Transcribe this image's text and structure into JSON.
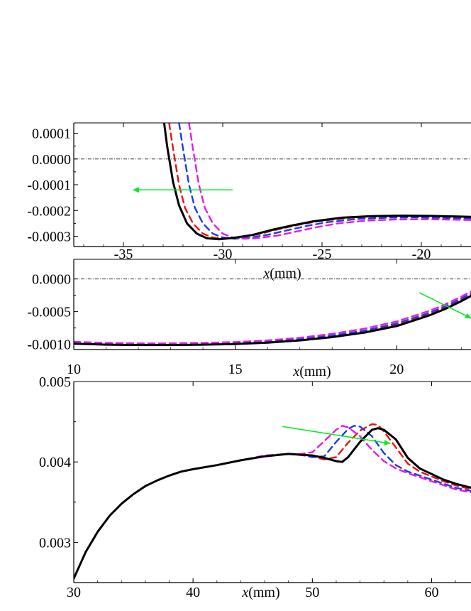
{
  "chart_data": [
    {
      "type": "line",
      "xlabel_var": "x",
      "xlabel_unit": "(mm)",
      "xlim": [
        -37.5,
        -17.5
      ],
      "ylim": [
        -0.00034,
        0.00014
      ],
      "xticks": [
        -35,
        -30,
        -25,
        -20
      ],
      "xtick_labels": [
        "-35",
        "-30",
        "-25",
        "-20"
      ],
      "yticks": [
        0.0001,
        0.0,
        -0.0001,
        -0.0002,
        -0.0003
      ],
      "ytick_labels": [
        "0.0001",
        "0.0000",
        "-0.0001",
        "-0.0002",
        "-0.0003"
      ],
      "zero_reference_line": true,
      "arrow": {
        "from": [
          -29.5,
          -0.00012
        ],
        "to": [
          -34.5,
          -0.00012
        ],
        "color": "#00ee22"
      },
      "series": [
        {
          "color": "#000000",
          "style": "solid",
          "x": [
            -32.95,
            -32.8,
            -32.5,
            -32.2,
            -31.8,
            -31.3,
            -30.8,
            -30.2,
            -29.5,
            -28.5,
            -27.5,
            -26.5,
            -25.5,
            -24,
            -22.5,
            -21,
            -19.5,
            -18,
            -17.5
          ],
          "y": [
            0.00014,
            5e-05,
            -9e-05,
            -0.00018,
            -0.00025,
            -0.00029,
            -0.000308,
            -0.000312,
            -0.000307,
            -0.000295,
            -0.000275,
            -0.000258,
            -0.000243,
            -0.000228,
            -0.000222,
            -0.00022,
            -0.000221,
            -0.000224,
            -0.000225
          ]
        },
        {
          "color": "#ee1111",
          "style": "dashed",
          "x": [
            -32.7,
            -32.5,
            -32.2,
            -31.9,
            -31.5,
            -31.0,
            -30.5,
            -29.9,
            -29.2,
            -28.2,
            -27.2,
            -26.2,
            -25.2,
            -23.7,
            -22.2,
            -20.7,
            -19.2,
            -17.5
          ],
          "y": [
            0.00014,
            4e-05,
            -0.0001,
            -0.00019,
            -0.00025,
            -0.00029,
            -0.000305,
            -0.00031,
            -0.000305,
            -0.000292,
            -0.000273,
            -0.000256,
            -0.000242,
            -0.000229,
            -0.000223,
            -0.000222,
            -0.000224,
            -0.000227
          ]
        },
        {
          "color": "#1a3de8",
          "style": "dashed",
          "x": [
            -32.2,
            -32.0,
            -31.7,
            -31.4,
            -31.0,
            -30.5,
            -30.0,
            -29.4,
            -28.7,
            -27.7,
            -26.7,
            -25.7,
            -24.7,
            -23.2,
            -21.7,
            -20.2,
            -18.7,
            -17.5
          ],
          "y": [
            0.00014,
            4e-05,
            -0.0001,
            -0.00019,
            -0.00025,
            -0.00029,
            -0.000305,
            -0.00031,
            -0.000306,
            -0.000294,
            -0.000276,
            -0.000259,
            -0.000245,
            -0.000233,
            -0.000228,
            -0.000227,
            -0.000229,
            -0.000231
          ]
        },
        {
          "color": "#e61ae6",
          "style": "dashed",
          "x": [
            -31.7,
            -31.5,
            -31.2,
            -30.9,
            -30.5,
            -30.0,
            -29.5,
            -28.9,
            -28.2,
            -27.2,
            -26.2,
            -25.2,
            -24.2,
            -22.7,
            -21.2,
            -19.7,
            -18.2,
            -17.5
          ],
          "y": [
            0.00014,
            4e-05,
            -0.0001,
            -0.00019,
            -0.00025,
            -0.00029,
            -0.000305,
            -0.00031,
            -0.000307,
            -0.000297,
            -0.00028,
            -0.000264,
            -0.00025,
            -0.000239,
            -0.000235,
            -0.000234,
            -0.000236,
            -0.000237
          ]
        }
      ]
    },
    {
      "type": "line",
      "xlabel_var": "x",
      "xlabel_unit": "(mm)",
      "xlim": [
        10,
        22.3
      ],
      "ylim": [
        -0.00108,
        0.0003
      ],
      "xticks": [
        10,
        15,
        20
      ],
      "xtick_labels": [
        "10",
        "15",
        "20"
      ],
      "yticks": [
        0.0,
        -0.0005,
        -0.001
      ],
      "ytick_labels": [
        "0.0000",
        "-0.0005",
        "-0.0010"
      ],
      "zero_reference_line": true,
      "arrow": {
        "from": [
          20.7,
          -0.00021
        ],
        "to": [
          22.3,
          -0.0006
        ],
        "color": "#00ee22"
      },
      "series": [
        {
          "color": "#000000",
          "style": "solid",
          "x": [
            10,
            11,
            12,
            13,
            14,
            15,
            16,
            17,
            18,
            19,
            20,
            21,
            21.5,
            22,
            22.3
          ],
          "y": [
            -0.00099,
            -0.001005,
            -0.00101,
            -0.00101,
            -0.001005,
            -0.000995,
            -0.000975,
            -0.00094,
            -0.00089,
            -0.00082,
            -0.00072,
            -0.00056,
            -0.00046,
            -0.00034,
            -0.00026
          ]
        },
        {
          "color": "#ee1111",
          "style": "dashed",
          "x": [
            10,
            11,
            12,
            13,
            14,
            15,
            16,
            17,
            18,
            19,
            20,
            21,
            21.5,
            22,
            22.3
          ],
          "y": [
            -0.00098,
            -0.000998,
            -0.001005,
            -0.001005,
            -0.001,
            -0.00099,
            -0.00097,
            -0.000932,
            -0.00088,
            -0.000805,
            -0.0007,
            -0.00054,
            -0.00044,
            -0.00032,
            -0.00024
          ]
        },
        {
          "color": "#1a3de8",
          "style": "dashed",
          "x": [
            10,
            11,
            12,
            13,
            14,
            15,
            16,
            17,
            18,
            19,
            20,
            21,
            21.5,
            22,
            22.3
          ],
          "y": [
            -0.000975,
            -0.00099,
            -0.000998,
            -0.000998,
            -0.000993,
            -0.00098,
            -0.000958,
            -0.00092,
            -0.000865,
            -0.00079,
            -0.00068,
            -0.00052,
            -0.00042,
            -0.0003,
            -0.00022
          ]
        },
        {
          "color": "#e61ae6",
          "style": "dashed",
          "x": [
            10,
            11,
            12,
            13,
            14,
            15,
            16,
            17,
            18,
            19,
            20,
            21,
            21.5,
            22,
            22.3
          ],
          "y": [
            -0.00096,
            -0.000978,
            -0.000985,
            -0.000985,
            -0.000978,
            -0.000965,
            -0.00094,
            -0.0009,
            -0.00084,
            -0.00076,
            -0.00065,
            -0.00049,
            -0.00039,
            -0.00027,
            -0.00019
          ]
        }
      ]
    },
    {
      "type": "line",
      "xlabel_var": "x",
      "xlabel_unit": "(mm)",
      "xlim": [
        30,
        63.3
      ],
      "ylim": [
        0.0025,
        0.005
      ],
      "xticks": [
        30,
        40,
        50,
        60
      ],
      "xtick_labels": [
        "30",
        "40",
        "50",
        "60"
      ],
      "yticks": [
        0.005,
        0.004,
        0.003
      ],
      "ytick_labels": [
        "0.005",
        "0.004",
        "0.003"
      ],
      "zero_reference_line": false,
      "arrow": {
        "from": [
          47.5,
          0.00444
        ],
        "to": [
          56.5,
          0.00423
        ],
        "color": "#00ee22"
      },
      "series": [
        {
          "color": "#000000",
          "style": "solid",
          "x": [
            30,
            31,
            32,
            33,
            34,
            35,
            36,
            37,
            38,
            39,
            40,
            42,
            44,
            46,
            48,
            50,
            51,
            52,
            52.5,
            53,
            54,
            55,
            55.5,
            56,
            57,
            58,
            59,
            60,
            61,
            62,
            63.3
          ],
          "y": [
            0.00255,
            0.00288,
            0.00313,
            0.00333,
            0.00348,
            0.0036,
            0.0037,
            0.00377,
            0.00383,
            0.00388,
            0.00391,
            0.00396,
            0.00402,
            0.00407,
            0.0041,
            0.00408,
            0.00405,
            0.00401,
            0.004,
            0.00406,
            0.00425,
            0.0044,
            0.00442,
            0.0044,
            0.00428,
            0.00405,
            0.00392,
            0.00385,
            0.00378,
            0.00373,
            0.00368
          ]
        },
        {
          "color": "#ee1111",
          "style": "dashed",
          "x": [
            30,
            31,
            32,
            33,
            34,
            35,
            36,
            37,
            38,
            39,
            40,
            42,
            44,
            46,
            48,
            50,
            51,
            52,
            53,
            54,
            55,
            55.5,
            56,
            57,
            58,
            59,
            60,
            61,
            62,
            63.3
          ],
          "y": [
            0.00255,
            0.00288,
            0.00313,
            0.00333,
            0.00348,
            0.0036,
            0.0037,
            0.00377,
            0.00383,
            0.00388,
            0.00391,
            0.00396,
            0.00402,
            0.00407,
            0.0041,
            0.00407,
            0.00403,
            0.00406,
            0.00424,
            0.00439,
            0.00447,
            0.00446,
            0.00438,
            0.00418,
            0.00398,
            0.00388,
            0.00382,
            0.00376,
            0.00371,
            0.00366
          ]
        },
        {
          "color": "#1a3de8",
          "style": "dashed",
          "x": [
            30,
            31,
            32,
            33,
            34,
            35,
            36,
            37,
            38,
            39,
            40,
            42,
            44,
            46,
            48,
            49,
            50,
            51,
            52,
            53,
            53.5,
            54,
            55,
            56,
            57,
            58,
            59,
            60,
            61,
            62,
            63.3
          ],
          "y": [
            0.00255,
            0.00288,
            0.00313,
            0.00333,
            0.00348,
            0.0036,
            0.0037,
            0.00377,
            0.00383,
            0.00388,
            0.00391,
            0.00396,
            0.00402,
            0.00408,
            0.0041,
            0.00409,
            0.00406,
            0.00407,
            0.00425,
            0.00441,
            0.00445,
            0.00444,
            0.00432,
            0.00411,
            0.00396,
            0.00388,
            0.00383,
            0.00378,
            0.00373,
            0.00368,
            0.00364
          ]
        },
        {
          "color": "#e61ae6",
          "style": "dashed",
          "x": [
            30,
            31,
            32,
            33,
            34,
            35,
            36,
            37,
            38,
            39,
            40,
            42,
            44,
            46,
            48,
            49,
            50,
            51,
            52,
            52.5,
            53,
            54,
            55,
            56,
            57,
            58,
            59,
            60,
            61,
            62,
            63.3
          ],
          "y": [
            0.00255,
            0.00288,
            0.00313,
            0.00333,
            0.00348,
            0.0036,
            0.0037,
            0.00377,
            0.00383,
            0.00388,
            0.00391,
            0.00396,
            0.00402,
            0.00408,
            0.0041,
            0.0041,
            0.00412,
            0.00426,
            0.0044,
            0.00445,
            0.00443,
            0.00432,
            0.00415,
            0.00401,
            0.00392,
            0.00386,
            0.00381,
            0.00376,
            0.00371,
            0.00366,
            0.00362
          ]
        }
      ]
    }
  ]
}
